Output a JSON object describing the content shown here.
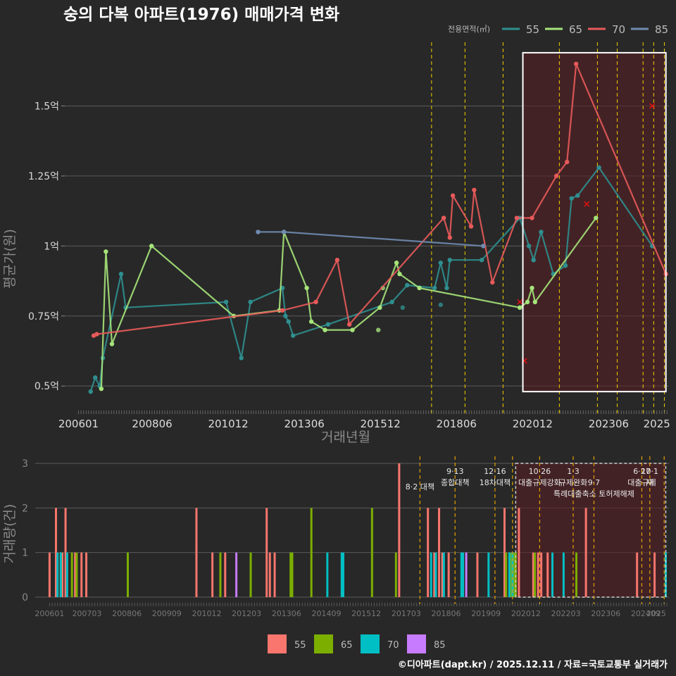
{
  "title": "숭의 다복 아파트(1976) 매매가격 변화",
  "footer": "©디아파트(dapt.kr) / 2025.12.11 / 자료=국토교통부 실거래가",
  "colors": {
    "bg": "#282828",
    "text": "#dddddd",
    "muted": "#7a7a7a",
    "grid": "#5a5a5a",
    "dash": "#e0c000",
    "dash2": "#e0a000",
    "shade": "#5a1e22",
    "box": "#ffffff",
    "x": "#dd1111"
  },
  "chart_data": [
    {
      "type": "line",
      "title": "숭의 다복 아파트(1976) 매매가격 변화",
      "xlabel": "거래년월",
      "ylabel": "평균가(원)",
      "legend_title": "전용면적(㎡)",
      "legend_position": "top-right",
      "xlim": [
        2005.55,
        2025.4
      ],
      "ylim": [
        0.42,
        1.74
      ],
      "x_ticks": [
        {
          "v": 2006.0,
          "l": "200601"
        },
        {
          "v": 2008.42,
          "l": "200806"
        },
        {
          "v": 2010.92,
          "l": "201012"
        },
        {
          "v": 2013.42,
          "l": "201306"
        },
        {
          "v": 2015.92,
          "l": "201512"
        },
        {
          "v": 2018.42,
          "l": "201806"
        },
        {
          "v": 2020.92,
          "l": "202012"
        },
        {
          "v": 2023.42,
          "l": "202306"
        },
        {
          "v": 2025.0,
          "l": "2025"
        }
      ],
      "y_ticks": [
        {
          "v": 0.5,
          "l": "0.5억"
        },
        {
          "v": 0.75,
          "l": "0.75억"
        },
        {
          "v": 1.0,
          "l": "1억"
        },
        {
          "v": 1.25,
          "l": "1.25억"
        },
        {
          "v": 1.5,
          "l": "1.5억"
        }
      ],
      "highlight": {
        "x": [
          2020.6,
          2025.3
        ],
        "y": [
          0.48,
          1.69
        ]
      },
      "vlines": [
        2017.6,
        2018.7,
        2019.95,
        2021.8,
        2023.05,
        2023.7,
        2024.55,
        2024.9,
        2025.25
      ],
      "series": [
        {
          "name": "55",
          "color": "#2f8f8f",
          "x": [
            2006.4,
            2006.55,
            2006.7,
            2006.8,
            2007.4,
            2007.55,
            2010.85,
            2011.35,
            2011.65,
            2012.7,
            2012.8,
            2012.9,
            2013.05,
            2014.2,
            2016.3,
            2016.8,
            2017.7,
            2017.9,
            2018.1,
            2018.2,
            2019.25,
            2020.5,
            2020.8,
            2020.95,
            2021.2,
            2021.6,
            2022.0,
            2022.2,
            2022.4,
            2023.1,
            2024.85
          ],
          "y": [
            0.48,
            0.53,
            0.5,
            0.6,
            0.9,
            0.78,
            0.8,
            0.6,
            0.8,
            0.85,
            0.75,
            0.73,
            0.68,
            0.72,
            0.8,
            0.86,
            0.85,
            0.94,
            0.85,
            0.95,
            0.95,
            1.1,
            1.0,
            0.95,
            1.05,
            0.9,
            0.93,
            1.17,
            1.18,
            1.28,
            1.0
          ],
          "dots_x": [
            2016.65,
            2017.9,
            2018.0,
            2012.7,
            2020.95
          ],
          "dots_y": [
            0.78,
            0.79,
            1.1,
            0.85,
            0.95
          ]
        },
        {
          "name": "65",
          "color": "#a6e47a",
          "x": [
            2006.75,
            2006.9,
            2007.1,
            2008.4,
            2011.1,
            2012.6,
            2012.75,
            2013.5,
            2013.65,
            2014.1,
            2015.0,
            2015.9,
            2016.45,
            2016.55,
            2017.2,
            2020.5,
            2020.75,
            2020.9,
            2021.0,
            2023.0
          ],
          "y": [
            0.49,
            0.98,
            0.65,
            1.0,
            0.75,
            0.77,
            1.05,
            0.85,
            0.73,
            0.7,
            0.7,
            0.78,
            0.94,
            0.9,
            0.85,
            0.78,
            0.8,
            0.85,
            0.8,
            1.1
          ],
          "dots_x": [
            2015.85,
            2016.0
          ],
          "dots_y": [
            0.7,
            0.85
          ]
        },
        {
          "name": "70",
          "color": "#e85a5a",
          "x": [
            2006.5,
            2006.6,
            2012.7,
            2013.8,
            2014.5,
            2014.9,
            2018.0,
            2018.2,
            2018.3,
            2018.9,
            2019.0,
            2019.6,
            2020.4,
            2020.9,
            2021.7,
            2022.05,
            2022.35,
            2025.3
          ],
          "y": [
            0.68,
            0.685,
            0.77,
            0.8,
            0.95,
            0.72,
            1.1,
            1.03,
            1.18,
            1.07,
            1.2,
            0.87,
            1.1,
            1.1,
            1.25,
            1.3,
            1.65,
            0.9
          ]
        },
        {
          "name": "85",
          "color": "#6f8bb0",
          "x": [
            2011.9,
            2012.75,
            2019.3
          ],
          "y": [
            1.05,
            1.05,
            1.0
          ]
        }
      ],
      "x_markers": {
        "x": [
          2020.5,
          2020.65,
          2022.7,
          2024.85
        ],
        "y": [
          0.8,
          0.59,
          1.15,
          1.5
        ]
      }
    },
    {
      "type": "bar",
      "ylabel": "거래량(건)",
      "xlim": [
        2005.55,
        2025.4
      ],
      "ylim": [
        0,
        3
      ],
      "y_ticks": [
        {
          "v": 0,
          "l": "0"
        },
        {
          "v": 1,
          "l": "1"
        },
        {
          "v": 2,
          "l": "2"
        },
        {
          "v": 3,
          "l": "3"
        }
      ],
      "x_ticks": [
        {
          "v": 2006.0,
          "l": "200601"
        },
        {
          "v": 2007.17,
          "l": "200703"
        },
        {
          "v": 2008.42,
          "l": "200806"
        },
        {
          "v": 2009.67,
          "l": "200909"
        },
        {
          "v": 2010.92,
          "l": "201012"
        },
        {
          "v": 2012.17,
          "l": "201203"
        },
        {
          "v": 2013.42,
          "l": "201306"
        },
        {
          "v": 2014.67,
          "l": "201409"
        },
        {
          "v": 2015.92,
          "l": "201512"
        },
        {
          "v": 2017.17,
          "l": "201703"
        },
        {
          "v": 2018.42,
          "l": "201806"
        },
        {
          "v": 2019.67,
          "l": "201909"
        },
        {
          "v": 2020.92,
          "l": "202012"
        },
        {
          "v": 2022.17,
          "l": "202203"
        },
        {
          "v": 2023.42,
          "l": "202306"
        },
        {
          "v": 2024.67,
          "l": "202409"
        },
        {
          "v": 2025.0,
          "l": "2025"
        }
      ],
      "highlight": {
        "x": [
          2020.6,
          2025.3
        ],
        "y": [
          0,
          3
        ]
      },
      "vlines": [
        2017.6,
        2018.7,
        2019.95,
        2020.5,
        2021.35,
        2022.4,
        2023.05,
        2024.55,
        2024.8,
        2025.25
      ],
      "legend_position": "bottom",
      "series": [
        {
          "name": "55",
          "color": "#f8766d",
          "bars": [
            [
              2006.0,
              1
            ],
            [
              2006.2,
              2
            ],
            [
              2006.4,
              1
            ],
            [
              2006.5,
              2
            ],
            [
              2006.8,
              1
            ],
            [
              2007.0,
              1
            ],
            [
              2007.15,
              1
            ],
            [
              2010.6,
              2
            ],
            [
              2011.1,
              1
            ],
            [
              2011.5,
              1
            ],
            [
              2012.8,
              2
            ],
            [
              2012.9,
              1
            ],
            [
              2013.05,
              1
            ],
            [
              2016.95,
              3
            ],
            [
              2017.85,
              2
            ],
            [
              2018.05,
              1
            ],
            [
              2018.2,
              2
            ],
            [
              2018.3,
              1
            ],
            [
              2018.5,
              1
            ],
            [
              2019.4,
              1
            ],
            [
              2020.25,
              2
            ],
            [
              2020.7,
              2
            ],
            [
              2021.15,
              1
            ],
            [
              2021.3,
              1
            ],
            [
              2021.4,
              1
            ],
            [
              2021.6,
              1
            ],
            [
              2022.8,
              2
            ],
            [
              2024.4,
              1
            ],
            [
              2024.95,
              1
            ]
          ]
        },
        {
          "name": "65",
          "color": "#7cae00",
          "bars": [
            [
              2006.35,
              1
            ],
            [
              2006.7,
              1
            ],
            [
              2006.85,
              1
            ],
            [
              2008.45,
              1
            ],
            [
              2011.35,
              1
            ],
            [
              2012.3,
              1
            ],
            [
              2013.55,
              1
            ],
            [
              2013.6,
              1
            ],
            [
              2014.2,
              2
            ],
            [
              2016.1,
              2
            ],
            [
              2016.85,
              1
            ],
            [
              2020.3,
              1
            ],
            [
              2020.45,
              1
            ],
            [
              2020.55,
              1
            ],
            [
              2020.6,
              1
            ],
            [
              2021.2,
              1
            ],
            [
              2022.5,
              1
            ]
          ]
        },
        {
          "name": "70",
          "color": "#00bfc4",
          "bars": [
            [
              2006.25,
              1
            ],
            [
              2006.35,
              1
            ],
            [
              2006.55,
              1
            ],
            [
              2014.7,
              1
            ],
            [
              2015.15,
              1
            ],
            [
              2015.2,
              1
            ],
            [
              2017.95,
              1
            ],
            [
              2018.1,
              1
            ],
            [
              2018.35,
              1
            ],
            [
              2018.9,
              1
            ],
            [
              2018.95,
              1
            ],
            [
              2019.75,
              1
            ],
            [
              2020.4,
              1
            ],
            [
              2020.5,
              1
            ],
            [
              2021.75,
              1
            ],
            [
              2022.1,
              1
            ],
            [
              2025.3,
              1
            ]
          ]
        },
        {
          "name": "85",
          "color": "#c77cff",
          "bars": [
            [
              2011.85,
              1
            ],
            [
              2019.05,
              1
            ]
          ]
        }
      ],
      "annotations": [
        {
          "x": 2017.6,
          "row": 1,
          "text": "8·2 대책"
        },
        {
          "x": 2018.7,
          "row": 0,
          "text": "9·13"
        },
        {
          "x": 2018.7,
          "row": 1,
          "text": "종합대책"
        },
        {
          "x": 2019.95,
          "row": 0,
          "text": "12·16"
        },
        {
          "x": 2019.95,
          "row": 1,
          "text": "18차대책"
        },
        {
          "x": 2021.35,
          "row": 0,
          "text": "10·26"
        },
        {
          "x": 2021.35,
          "row": 1,
          "text": "대출규제강화"
        },
        {
          "x": 2022.4,
          "row": 0,
          "text": "1·3"
        },
        {
          "x": 2022.4,
          "row": 1,
          "text": "규제완화"
        },
        {
          "x": 2023.05,
          "row": 1,
          "text": "9·7"
        },
        {
          "x": 2023.05,
          "row": 2,
          "text": "특례대출축소 토허제해제"
        },
        {
          "x": 2024.55,
          "row": 0,
          "text": "6·27"
        },
        {
          "x": 2024.55,
          "row": 1,
          "text": "대출규제"
        },
        {
          "x": 2024.8,
          "row": 0,
          "text": "10·1"
        },
        {
          "x": 2024.8,
          "row": 1,
          "text": "재"
        }
      ]
    }
  ]
}
